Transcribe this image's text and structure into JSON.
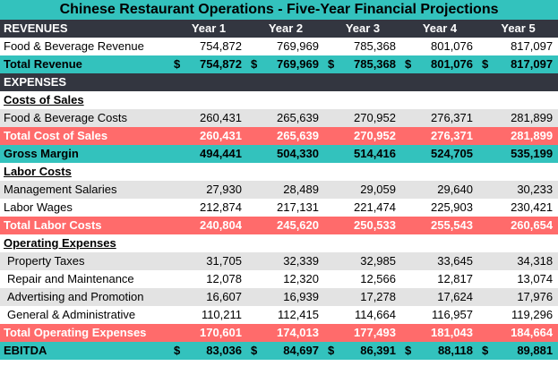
{
  "title": "Chinese Restaurant Operations - Five-Year Financial Projections",
  "revenues_label": "REVENUES",
  "years": [
    "Year 1",
    "Year 2",
    "Year 3",
    "Year 4",
    "Year 5"
  ],
  "currency_symbol": "$",
  "food_beverage_revenue": {
    "label": "Food & Beverage Revenue",
    "values": [
      "754,872",
      "769,969",
      "785,368",
      "801,076",
      "817,097"
    ]
  },
  "total_revenue": {
    "label": "Total Revenue",
    "values": [
      "754,872",
      "769,969",
      "785,368",
      "801,076",
      "817,097"
    ]
  },
  "expenses_label": "EXPENSES",
  "costs_of_sales_label": "Costs of Sales",
  "food_beverage_costs": {
    "label": "Food & Beverage Costs",
    "values": [
      "260,431",
      "265,639",
      "270,952",
      "276,371",
      "281,899"
    ]
  },
  "total_cost_of_sales": {
    "label": "Total Cost of Sales",
    "values": [
      "260,431",
      "265,639",
      "270,952",
      "276,371",
      "281,899"
    ]
  },
  "gross_margin": {
    "label": "Gross Margin",
    "values": [
      "494,441",
      "504,330",
      "514,416",
      "524,705",
      "535,199"
    ]
  },
  "labor_costs_label": "Labor Costs",
  "management_salaries": {
    "label": "Management Salaries",
    "values": [
      "27,930",
      "28,489",
      "29,059",
      "29,640",
      "30,233"
    ]
  },
  "labor_wages": {
    "label": "Labor Wages",
    "values": [
      "212,874",
      "217,131",
      "221,474",
      "225,903",
      "230,421"
    ]
  },
  "total_labor_costs": {
    "label": "Total Labor Costs",
    "values": [
      "240,804",
      "245,620",
      "250,533",
      "255,543",
      "260,654"
    ]
  },
  "operating_expenses_label": "Operating Expenses",
  "property_taxes": {
    "label": "Property Taxes",
    "values": [
      "31,705",
      "32,339",
      "32,985",
      "33,645",
      "34,318"
    ]
  },
  "repair_maintenance": {
    "label": "Repair and Maintenance",
    "values": [
      "12,078",
      "12,320",
      "12,566",
      "12,817",
      "13,074"
    ]
  },
  "advertising_promotion": {
    "label": "Advertising and Promotion",
    "values": [
      "16,607",
      "16,939",
      "17,278",
      "17,624",
      "17,976"
    ]
  },
  "general_administrative": {
    "label": "General & Administrative",
    "values": [
      "110,211",
      "112,415",
      "114,664",
      "116,957",
      "119,296"
    ]
  },
  "total_operating_expenses": {
    "label": "Total Operating Expenses",
    "values": [
      "170,601",
      "174,013",
      "177,493",
      "181,043",
      "184,664"
    ]
  },
  "ebitda": {
    "label": "EBITDA",
    "values": [
      "83,036",
      "84,697",
      "86,391",
      "88,118",
      "89,881"
    ]
  },
  "colors": {
    "teal": "#33c2bd",
    "dark": "#333640",
    "red": "#ff6b6b",
    "gray": "#e3e3e3"
  }
}
